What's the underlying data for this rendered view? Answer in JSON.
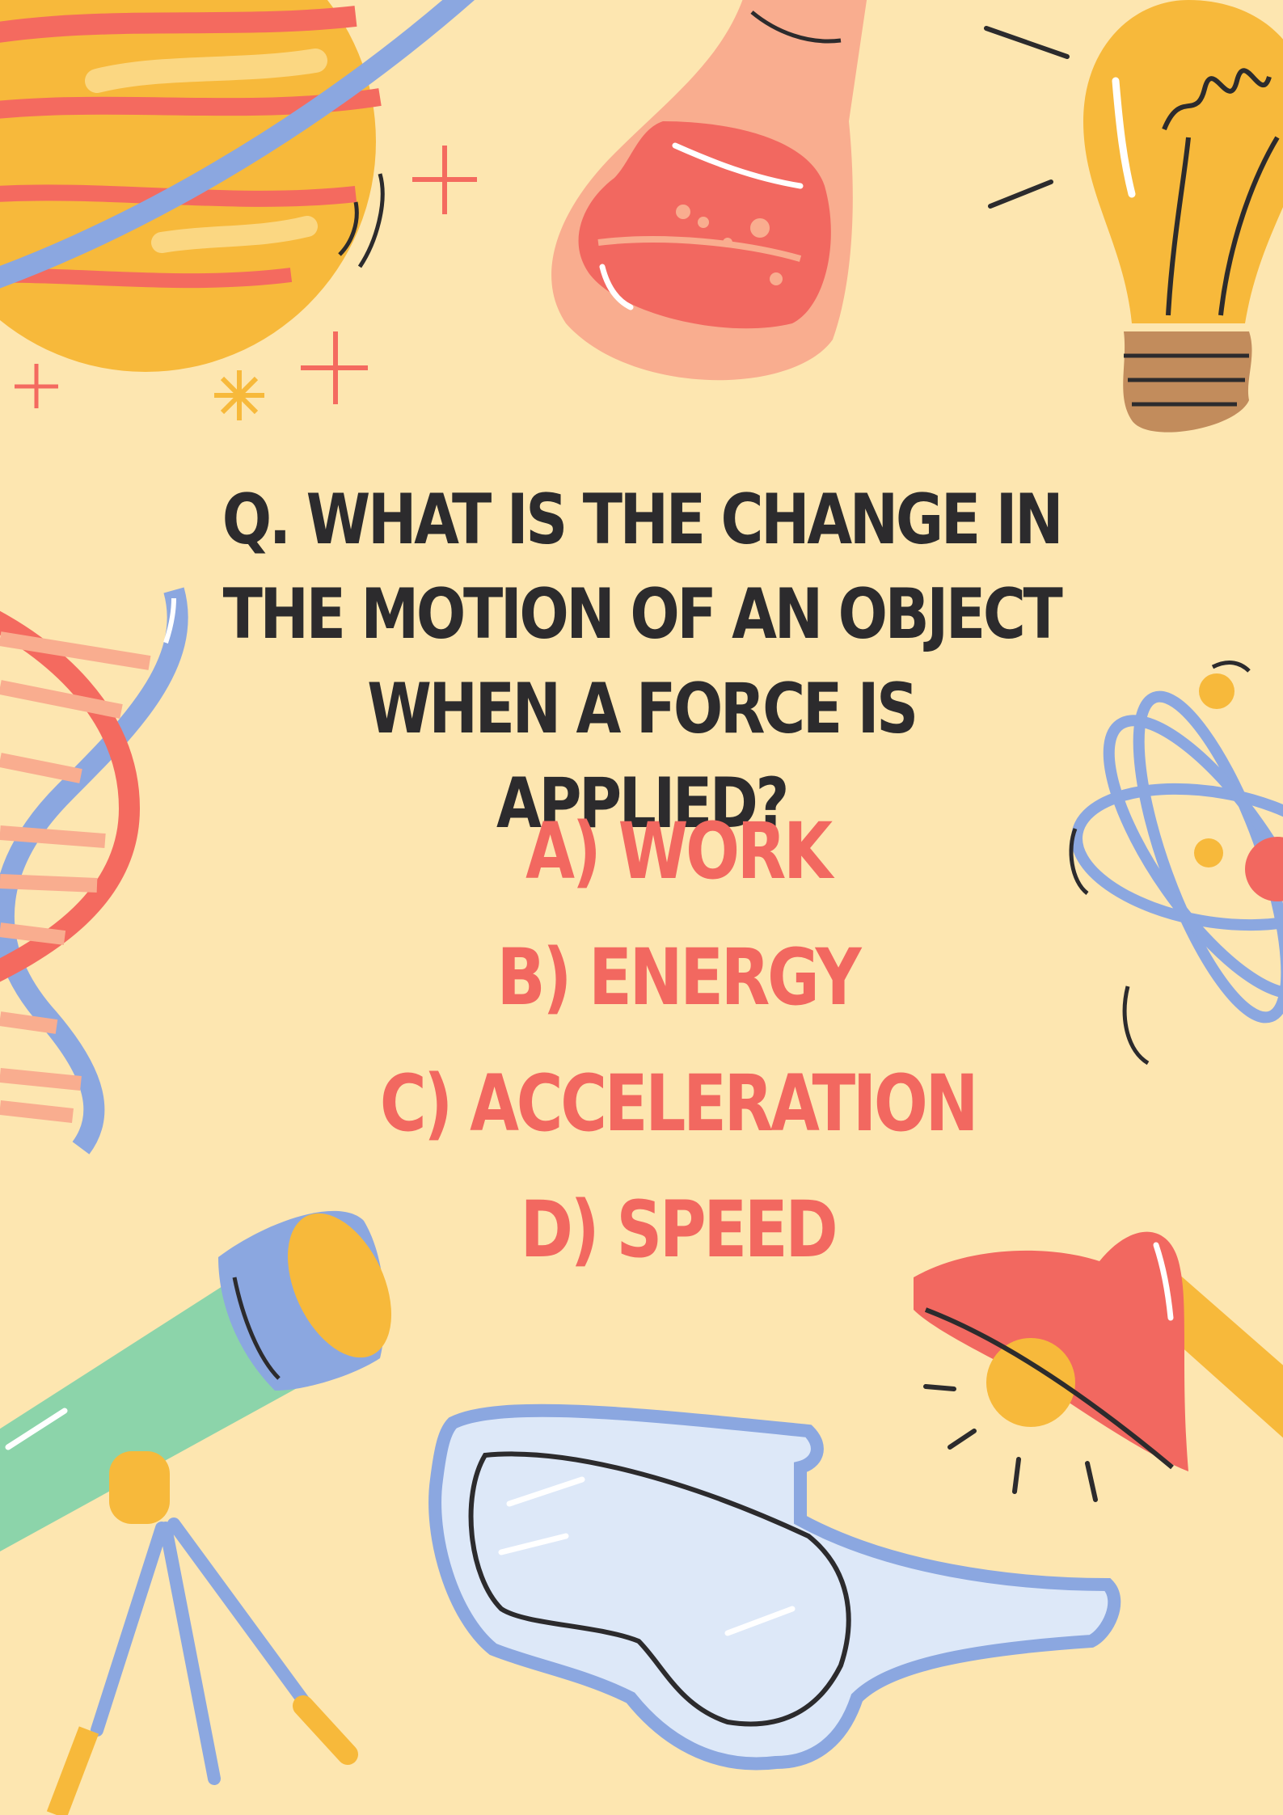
{
  "quiz": {
    "question": "Q. WHAT IS THE CHANGE IN THE MOTION OF AN OBJECT WHEN A FORCE IS APPLIED?",
    "options": [
      {
        "label": "A) WORK"
      },
      {
        "label": "B) ENERGY"
      },
      {
        "label": "C) ACCELERATION"
      },
      {
        "label": "D) SPEED"
      }
    ]
  },
  "colors": {
    "background": "#fde6b0",
    "question_text": "#2c2b2d",
    "option_text": "#f26860"
  },
  "illustrations": [
    "planet-icon",
    "flask-icon",
    "light-bulb-icon",
    "dna-icon",
    "atom-icon",
    "telescope-icon",
    "safety-goggles-icon",
    "lamp-icon"
  ]
}
